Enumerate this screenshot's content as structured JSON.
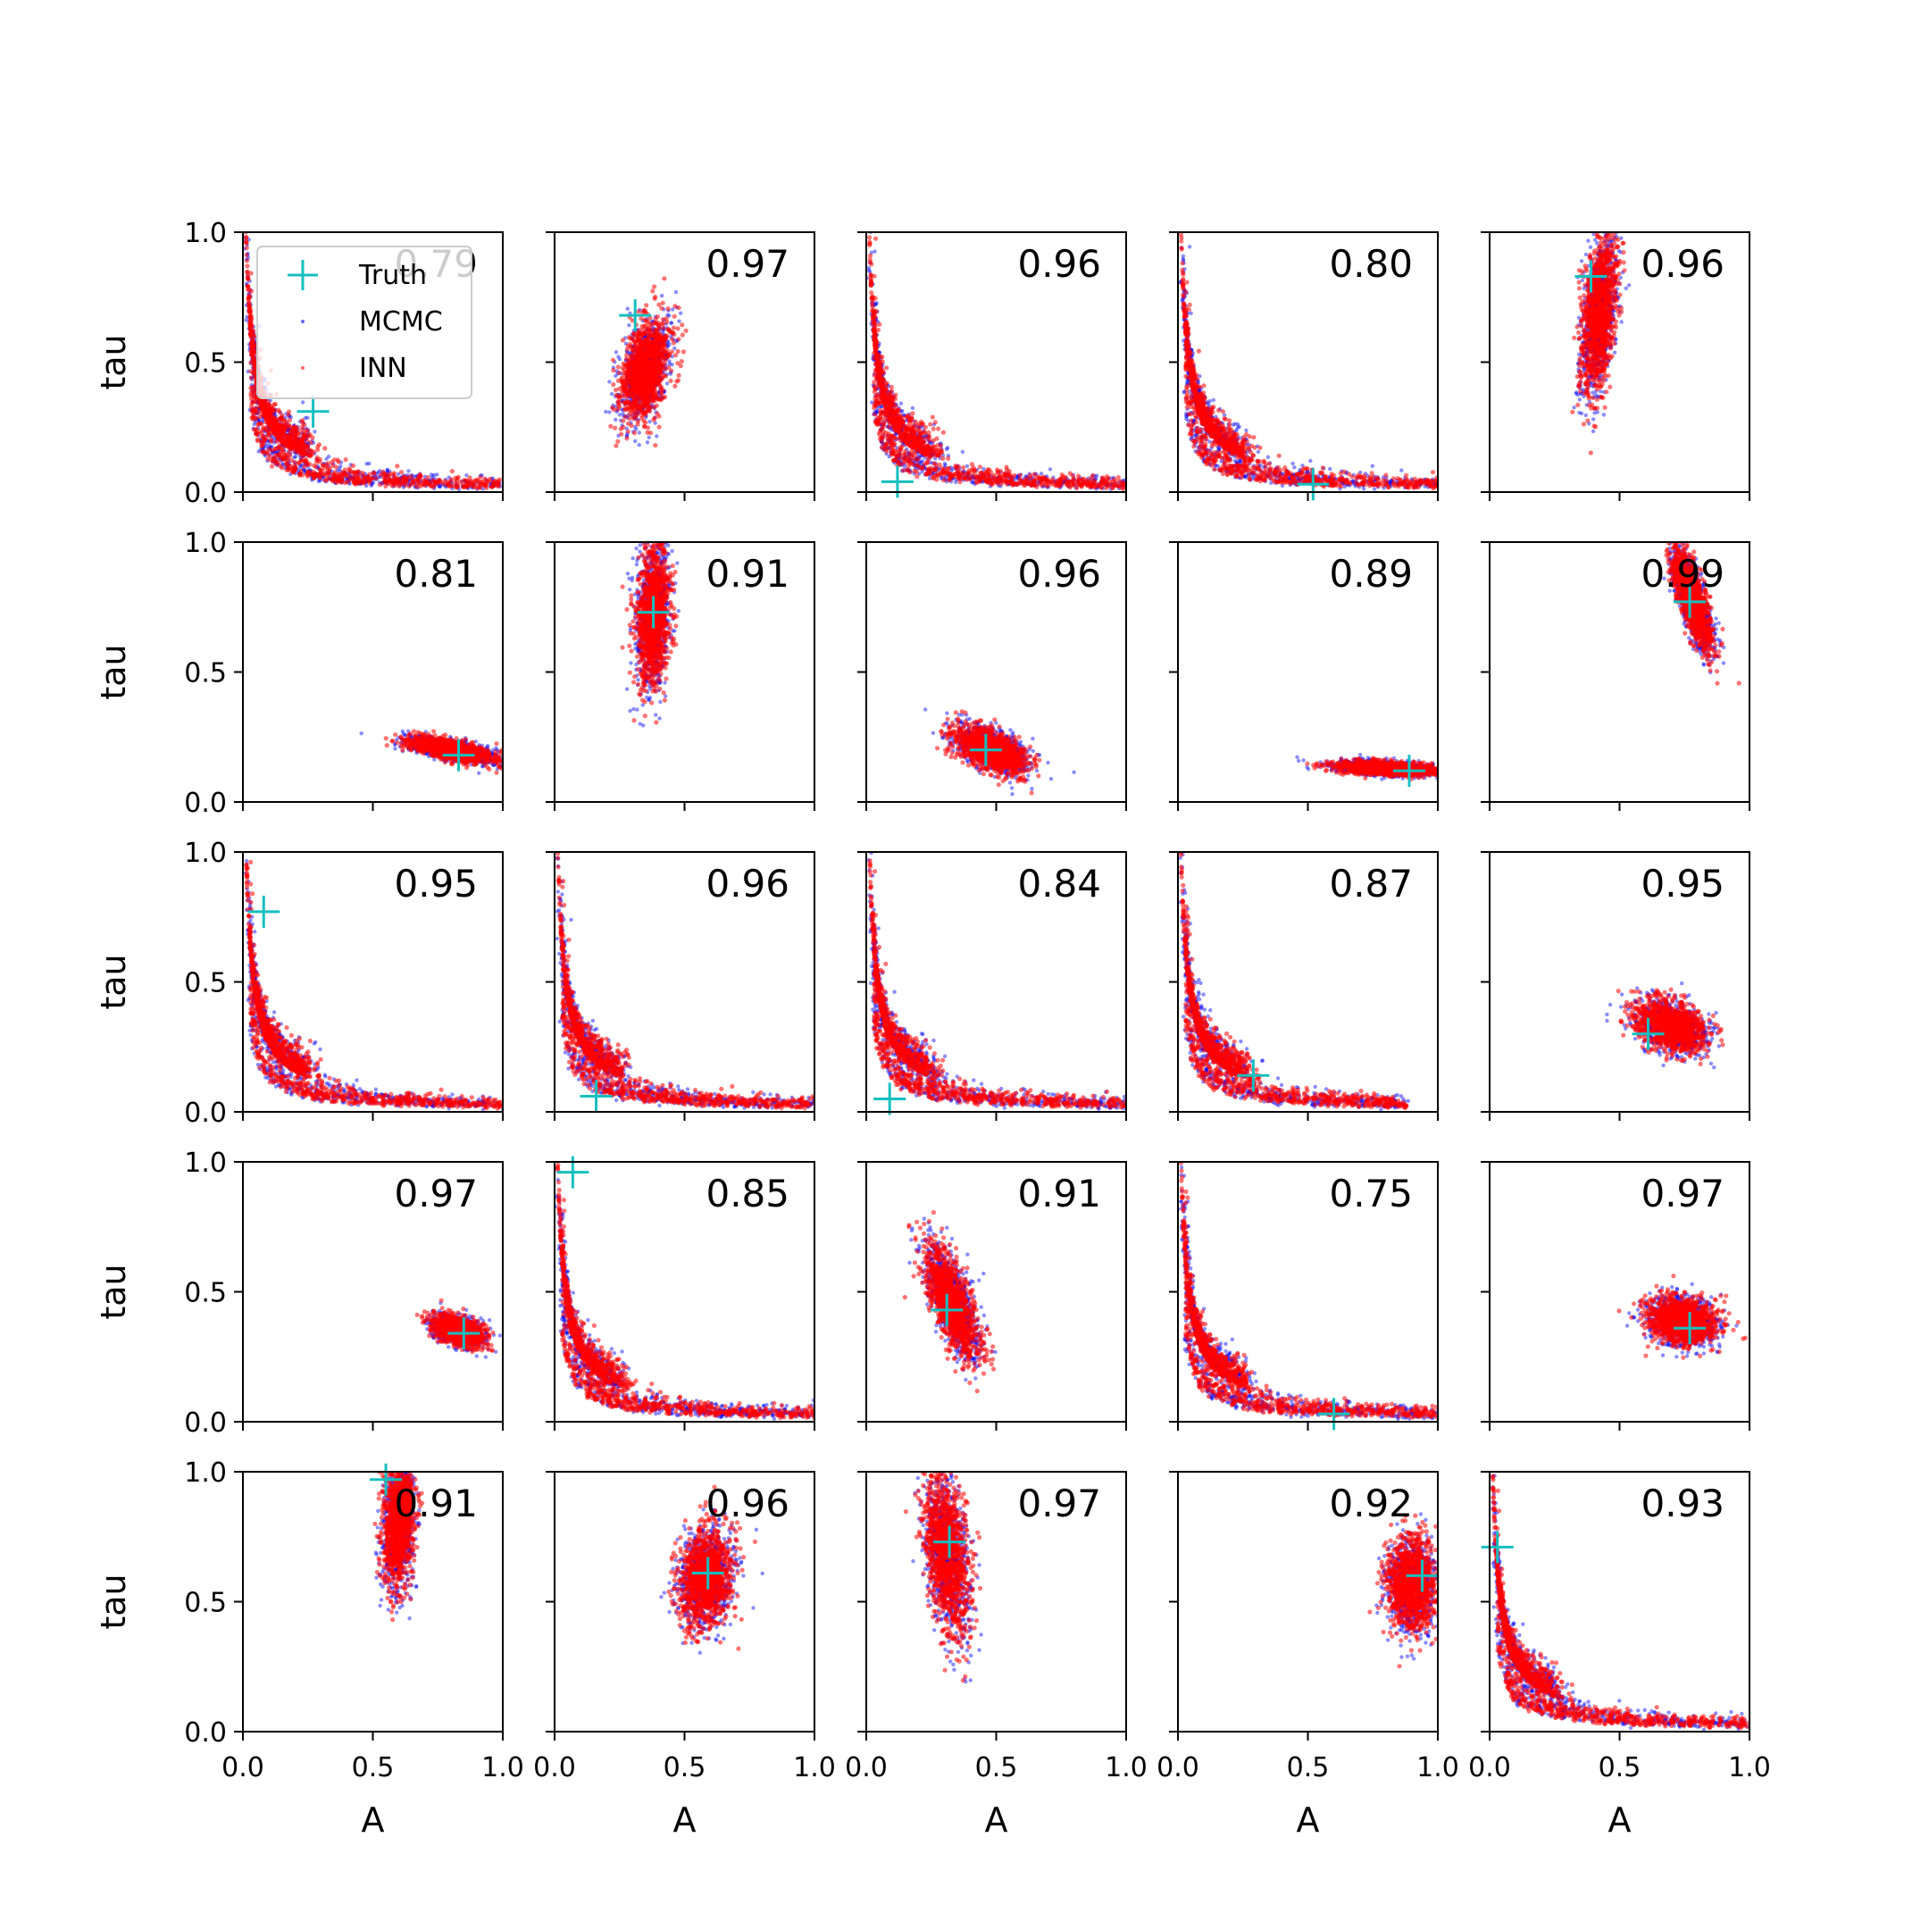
{
  "figure": {
    "xlabel": "A",
    "ylabel": "tau",
    "xticks": [
      "0.0",
      "0.5",
      "1.0"
    ],
    "yticks": [
      "0.0",
      "0.5",
      "1.0"
    ],
    "legend": [
      {
        "label": "Truth",
        "marker": "plus",
        "color": "#17bfbf"
      },
      {
        "label": "MCMC",
        "marker": "point",
        "color": "#0000ff"
      },
      {
        "label": "INN",
        "marker": "point",
        "color": "#ff0000"
      }
    ],
    "colors": {
      "truth": "#17bfbf",
      "mcmc": "#0000ff",
      "inn": "#ff0000"
    }
  },
  "chart_data": {
    "type": "scatter",
    "grid": false,
    "xlim": [
      0,
      1
    ],
    "ylim": [
      0,
      1
    ],
    "legend_location": "upper-left of first panel",
    "panels": [
      {
        "row": 0,
        "col": 0,
        "score": "0.79",
        "truth": {
          "A": 0.27,
          "tau": 0.31
        },
        "shape": "hyperbola",
        "tail": 0.96
      },
      {
        "row": 0,
        "col": 1,
        "score": "0.97",
        "truth": {
          "A": 0.31,
          "tau": 0.68
        },
        "shape": "blob",
        "blob": {
          "cx": 0.35,
          "cy": 0.47,
          "rx": 0.08,
          "ry": 0.19,
          "tilt": -0.25
        }
      },
      {
        "row": 0,
        "col": 2,
        "score": "0.96",
        "truth": {
          "A": 0.12,
          "tau": 0.04
        },
        "shape": "hyperbola",
        "tail": 1.0
      },
      {
        "row": 0,
        "col": 3,
        "score": "0.80",
        "truth": {
          "A": 0.52,
          "tau": 0.03
        },
        "shape": "hyperbola",
        "tail": 0.98
      },
      {
        "row": 0,
        "col": 4,
        "score": "0.96",
        "truth": {
          "A": 0.39,
          "tau": 0.83
        },
        "shape": "blob",
        "blob": {
          "cx": 0.42,
          "cy": 0.68,
          "rx": 0.06,
          "ry": 0.3,
          "tilt": -0.1
        }
      },
      {
        "row": 1,
        "col": 0,
        "score": "0.81",
        "truth": {
          "A": 0.83,
          "tau": 0.18
        },
        "shape": "blob",
        "blob": {
          "cx": 0.8,
          "cy": 0.2,
          "rx": 0.17,
          "ry": 0.035,
          "tilt": -0.2
        }
      },
      {
        "row": 1,
        "col": 1,
        "score": "0.91",
        "truth": {
          "A": 0.38,
          "tau": 0.73
        },
        "shape": "blob",
        "blob": {
          "cx": 0.38,
          "cy": 0.72,
          "rx": 0.06,
          "ry": 0.28,
          "tilt": -0.05
        }
      },
      {
        "row": 1,
        "col": 2,
        "score": "0.96",
        "truth": {
          "A": 0.46,
          "tau": 0.2
        },
        "shape": "blob",
        "blob": {
          "cx": 0.48,
          "cy": 0.2,
          "rx": 0.15,
          "ry": 0.07,
          "tilt": -0.45
        }
      },
      {
        "row": 1,
        "col": 3,
        "score": "0.89",
        "truth": {
          "A": 0.89,
          "tau": 0.12
        },
        "shape": "blob",
        "blob": {
          "cx": 0.8,
          "cy": 0.13,
          "rx": 0.19,
          "ry": 0.025,
          "tilt": -0.05
        }
      },
      {
        "row": 1,
        "col": 4,
        "score": "0.99",
        "truth": {
          "A": 0.77,
          "tau": 0.77
        },
        "shape": "blob",
        "blob": {
          "cx": 0.78,
          "cy": 0.78,
          "rx": 0.05,
          "ry": 0.2,
          "tilt": 0.3
        }
      },
      {
        "row": 2,
        "col": 0,
        "score": "0.95",
        "truth": {
          "A": 0.08,
          "tau": 0.77
        },
        "shape": "hyperbola",
        "tail": 1.0
      },
      {
        "row": 2,
        "col": 1,
        "score": "0.96",
        "truth": {
          "A": 0.16,
          "tau": 0.06
        },
        "shape": "hyperbola",
        "tail": 1.0
      },
      {
        "row": 2,
        "col": 2,
        "score": "0.84",
        "truth": {
          "A": 0.09,
          "tau": 0.05
        },
        "shape": "hyperbola",
        "tail": 1.0
      },
      {
        "row": 2,
        "col": 3,
        "score": "0.87",
        "truth": {
          "A": 0.29,
          "tau": 0.14
        },
        "shape": "hyperbola",
        "tail": 0.85
      },
      {
        "row": 2,
        "col": 4,
        "score": "0.95",
        "truth": {
          "A": 0.61,
          "tau": 0.3
        },
        "shape": "blob",
        "blob": {
          "cx": 0.7,
          "cy": 0.33,
          "rx": 0.14,
          "ry": 0.09,
          "tilt": -0.4
        }
      },
      {
        "row": 3,
        "col": 0,
        "score": "0.97",
        "truth": {
          "A": 0.85,
          "tau": 0.34
        },
        "shape": "blob",
        "blob": {
          "cx": 0.83,
          "cy": 0.35,
          "rx": 0.1,
          "ry": 0.05,
          "tilt": -0.35
        }
      },
      {
        "row": 3,
        "col": 1,
        "score": "0.85",
        "truth": {
          "A": 0.07,
          "tau": 0.96
        },
        "shape": "hyperbola",
        "tail": 1.0
      },
      {
        "row": 3,
        "col": 2,
        "score": "0.91",
        "truth": {
          "A": 0.31,
          "tau": 0.43
        },
        "shape": "blob",
        "blob": {
          "cx": 0.33,
          "cy": 0.46,
          "rx": 0.07,
          "ry": 0.23,
          "tilt": 0.35
        }
      },
      {
        "row": 3,
        "col": 3,
        "score": "0.75",
        "truth": {
          "A": 0.6,
          "tau": 0.03
        },
        "shape": "hyperbola",
        "tail": 1.0
      },
      {
        "row": 3,
        "col": 4,
        "score": "0.97",
        "truth": {
          "A": 0.77,
          "tau": 0.36
        },
        "shape": "blob",
        "blob": {
          "cx": 0.74,
          "cy": 0.39,
          "rx": 0.13,
          "ry": 0.09,
          "tilt": -0.2
        }
      },
      {
        "row": 4,
        "col": 0,
        "score": "0.91",
        "truth": {
          "A": 0.55,
          "tau": 0.97
        },
        "shape": "blob",
        "blob": {
          "cx": 0.6,
          "cy": 0.8,
          "rx": 0.06,
          "ry": 0.24,
          "tilt": -0.05
        }
      },
      {
        "row": 4,
        "col": 1,
        "score": "0.96",
        "truth": {
          "A": 0.59,
          "tau": 0.61
        },
        "shape": "blob",
        "blob": {
          "cx": 0.58,
          "cy": 0.59,
          "rx": 0.1,
          "ry": 0.19,
          "tilt": -0.1
        }
      },
      {
        "row": 4,
        "col": 2,
        "score": "0.97",
        "truth": {
          "A": 0.32,
          "tau": 0.73
        },
        "shape": "blob",
        "blob": {
          "cx": 0.31,
          "cy": 0.68,
          "rx": 0.08,
          "ry": 0.3,
          "tilt": 0.12
        }
      },
      {
        "row": 4,
        "col": 3,
        "score": "0.92",
        "truth": {
          "A": 0.94,
          "tau": 0.6
        },
        "shape": "blob",
        "blob": {
          "cx": 0.9,
          "cy": 0.57,
          "rx": 0.09,
          "ry": 0.17,
          "tilt": 0.0
        }
      },
      {
        "row": 4,
        "col": 4,
        "score": "0.93",
        "truth": {
          "A": 0.03,
          "tau": 0.71
        },
        "shape": "hyperbola",
        "tail": 1.0
      }
    ]
  }
}
